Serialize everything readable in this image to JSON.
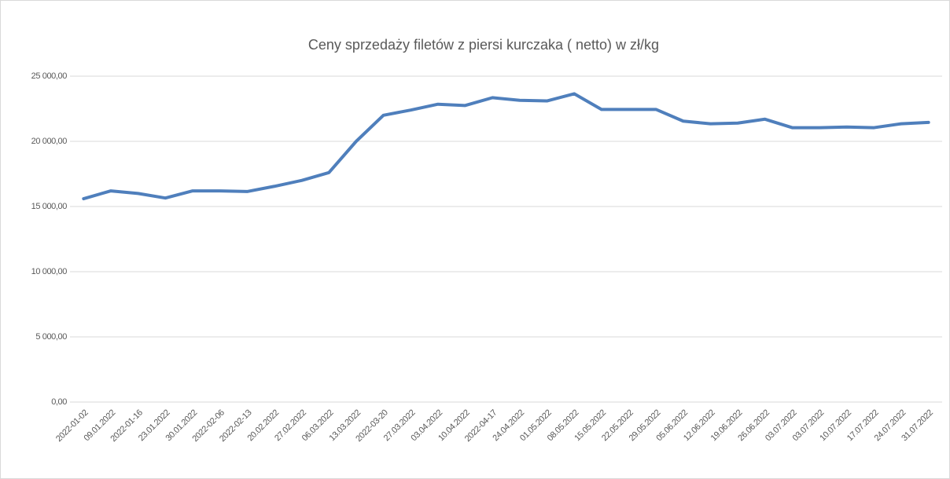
{
  "chart_data": {
    "type": "line",
    "title": "Ceny sprzedaży filetów z piersi kurczaka ( netto) w zł/kg",
    "categories": [
      "2022-01-02",
      "09.01.2022",
      "2022-01-16",
      "23.01.2022",
      "30.01.2022",
      "2022-02-06",
      "2022-02-13",
      "20.02.2022",
      "27.02.2022",
      "06.03.2022",
      "13.03.2022",
      "2022-03-20",
      "27.03.2022",
      "03.04.2022",
      "10.04.2022",
      "2022-04-17",
      "24.04.2022",
      "01.05.2022",
      "08.05.2022",
      "15.05.2022",
      "22.05.2022",
      "29.05.2022",
      "05.06.2022",
      "12.06.2022",
      "19.06.2022",
      "26.06.2022",
      "03.07.2022",
      "03.07.2022",
      "10.07.2022",
      "17.07.2022",
      "24.07.2022",
      "31.07.2022"
    ],
    "values": [
      15600,
      16200,
      16000,
      15650,
      16200,
      16200,
      16150,
      16550,
      17000,
      17600,
      20000,
      22000,
      22400,
      22850,
      22750,
      23350,
      23150,
      23100,
      23650,
      22450,
      22450,
      22450,
      21550,
      21350,
      21400,
      21700,
      21050,
      21050,
      21100,
      21050,
      21350,
      21450
    ],
    "color": "#4f7fbc",
    "ylim": [
      0,
      25000
    ],
    "yticks": [
      {
        "value": 0,
        "label": "0,00"
      },
      {
        "value": 5000,
        "label": "5 000,00"
      },
      {
        "value": 10000,
        "label": "10 000,00"
      },
      {
        "value": 15000,
        "label": "15 000,00"
      },
      {
        "value": 20000,
        "label": "20 000,00"
      },
      {
        "value": 25000,
        "label": "25 000,00"
      }
    ],
    "grid": true
  }
}
